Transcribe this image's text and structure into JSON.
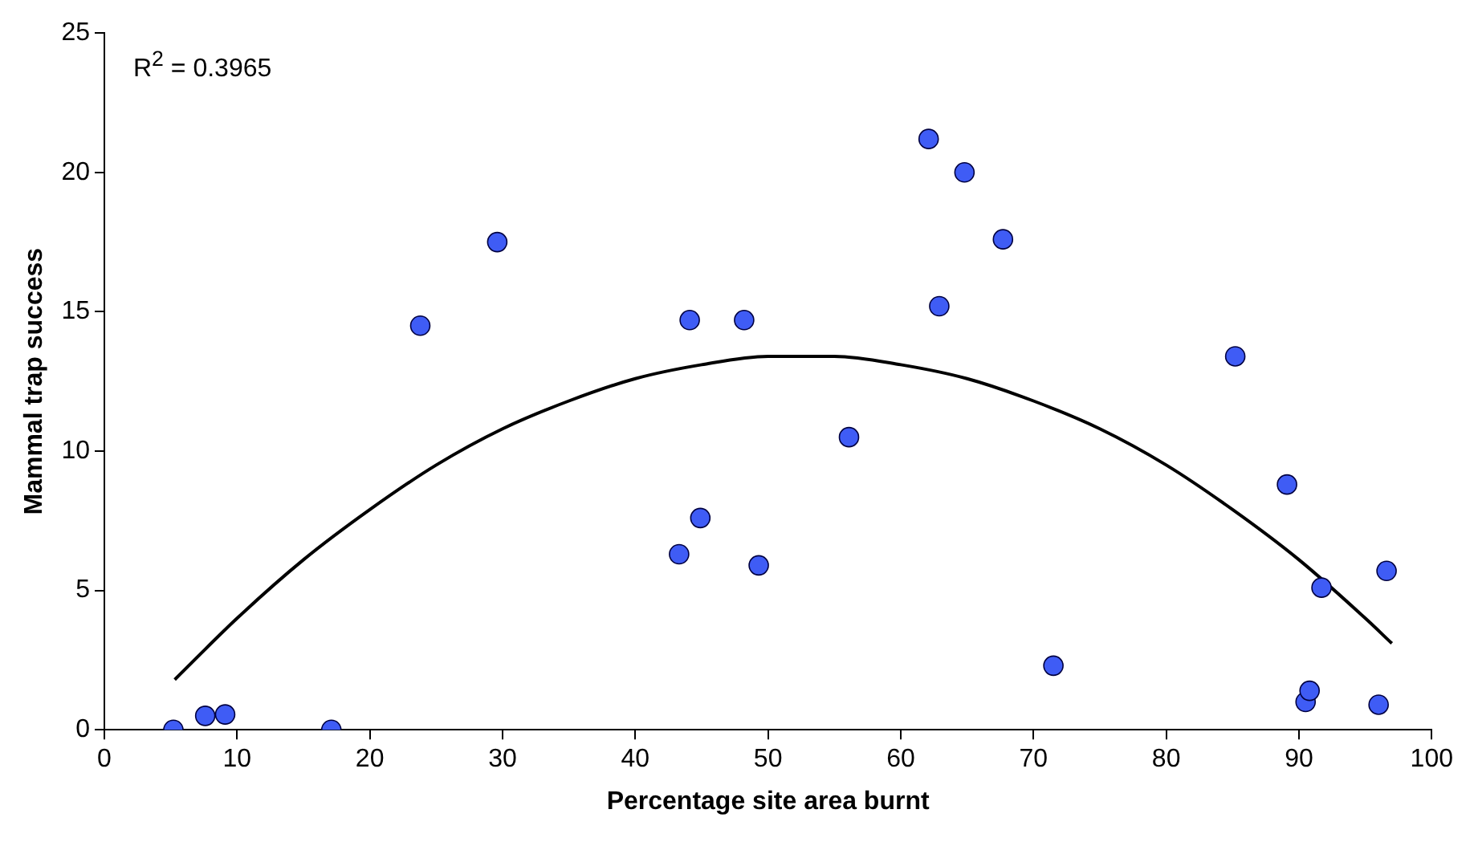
{
  "chart_data": {
    "type": "scatter",
    "xlabel": "Percentage site area burnt",
    "ylabel": "Mammal trap success",
    "annotations": [
      "R$^{2}$ = 0.3965"
    ],
    "xlim": [
      0,
      100
    ],
    "xticks": [
      0,
      10,
      20,
      30,
      40,
      50,
      60,
      70,
      80,
      90,
      100
    ],
    "ylim": [
      0,
      25
    ],
    "yticks": [
      0,
      5,
      10,
      15,
      20,
      25
    ],
    "legend": false,
    "marker": "circle",
    "series": [
      {
        "color": "#3f5cf5",
        "x": [
          5.2,
          7.6,
          9.1,
          17.1,
          23.8,
          29.6,
          43.3,
          44.1,
          44.9,
          48.2,
          49.3,
          56.1,
          62.1,
          62.9,
          64.8,
          67.7,
          71.5,
          85.2,
          89.1,
          90.5,
          90.8,
          91.7,
          96.0,
          96.6
        ],
        "values": [
          0,
          0.5,
          0.55,
          0,
          14.5,
          17.5,
          6.3,
          14.7,
          7.6,
          14.7,
          5.9,
          10.5,
          21.2,
          15.2,
          20.0,
          17.6,
          2.3,
          13.4,
          8.8,
          1.0,
          1.4,
          5.1,
          0.9,
          5.7
        ]
      },
      {
        "type": "line",
        "color": "#000000",
        "marker": "none",
        "x": [
          5.3,
          10,
          15,
          20,
          25,
          30,
          35,
          40,
          45,
          50,
          55,
          60,
          65,
          70,
          75,
          80,
          85,
          90,
          95,
          97
        ],
        "values": [
          1.8,
          4.0,
          6.1,
          7.9,
          9.5,
          10.8,
          11.8,
          12.6,
          13.1,
          13.4,
          13.4,
          13.1,
          12.6,
          11.8,
          10.8,
          9.5,
          7.9,
          6.1,
          4.0,
          3.1
        ]
      }
    ]
  }
}
